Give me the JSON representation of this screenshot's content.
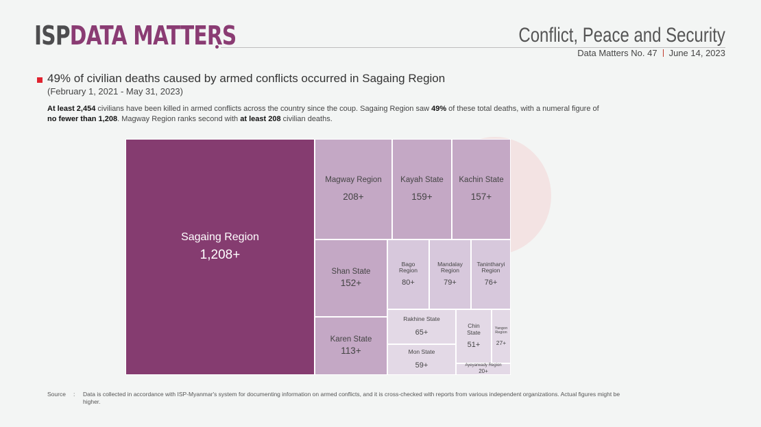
{
  "header": {
    "logo_isp": "ISP",
    "logo_dm": "DATA MATTERS",
    "section": "Conflict, Peace and Security",
    "issue": "Data Matters No. 47",
    "date": "June 14, 2023"
  },
  "headline": "49% of civilian deaths caused by armed conflicts occurred in Sagaing Region",
  "date_range": "(February 1, 2021 - May 31, 2023)",
  "description": {
    "p1": "At least 2,454",
    "p2": " civilians have been killed in armed conflicts across the country since the coup. Sagaing Region saw ",
    "p3": "49%",
    "p4": " of these total deaths, with a numeral figure of ",
    "p5": "no fewer than 1,208",
    "p6": ". Magway Region ranks second with ",
    "p7": "at least 208",
    "p8": " civilian deaths."
  },
  "colors": {
    "dark": "#853c70",
    "medium": "#c4a8c5",
    "light": "#d7c8dc",
    "lightest": "#e3d9e6",
    "accent_red": "#e0232f"
  },
  "chart_data": {
    "type": "treemap",
    "unit": "civilian deaths",
    "items": [
      {
        "name": "Sagaing Region",
        "label": "1,208+",
        "value": 1208,
        "shade": "dark"
      },
      {
        "name": "Magway Region",
        "label": "208+",
        "value": 208,
        "shade": "medium"
      },
      {
        "name": "Kayah State",
        "label": "159+",
        "value": 159,
        "shade": "medium"
      },
      {
        "name": "Kachin State",
        "label": "157+",
        "value": 157,
        "shade": "medium"
      },
      {
        "name": "Shan State",
        "label": "152+",
        "value": 152,
        "shade": "medium"
      },
      {
        "name": "Karen State",
        "label": "113+",
        "value": 113,
        "shade": "medium"
      },
      {
        "name": "Bago Region",
        "label": "80+",
        "value": 80,
        "shade": "light"
      },
      {
        "name": "Mandalay Region",
        "label": "79+",
        "value": 79,
        "shade": "light"
      },
      {
        "name": "Tanintharyi Region",
        "label": "76+",
        "value": 76,
        "shade": "light"
      },
      {
        "name": "Rakhine State",
        "label": "65+",
        "value": 65,
        "shade": "lightest"
      },
      {
        "name": "Mon State",
        "label": "59+",
        "value": 59,
        "shade": "lightest"
      },
      {
        "name": "Chin State",
        "label": "51+",
        "value": 51,
        "shade": "lightest"
      },
      {
        "name": "Yangon Region",
        "label": "27+",
        "value": 27,
        "shade": "lightest"
      },
      {
        "name": "Ayeyarwady Region",
        "label": "20+",
        "value": 20,
        "shade": "lightest"
      }
    ]
  },
  "source": {
    "label": "Source",
    "colon": ":",
    "text": "Data is collected in accordance with ISP-Myanmar's system for documenting information on armed conflicts, and it is cross-checked with reports from various independent organizations. Actual figures might be higher."
  }
}
